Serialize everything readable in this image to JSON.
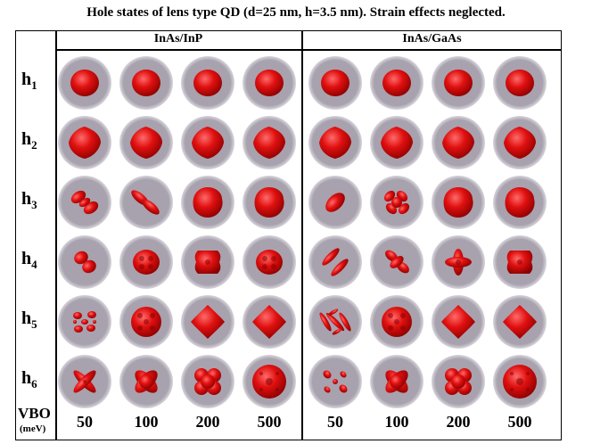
{
  "figure": {
    "title": "Hole states of lens type QD (d=25 nm, h=3.5 nm). Strain effects neglected.",
    "groups": [
      "InAs/InP",
      "InAs/GaAs"
    ],
    "row_labels": [
      {
        "main": "h",
        "sub": "1"
      },
      {
        "main": "h",
        "sub": "2"
      },
      {
        "main": "h",
        "sub": "3"
      },
      {
        "main": "h",
        "sub": "4"
      },
      {
        "main": "h",
        "sub": "5"
      },
      {
        "main": "h",
        "sub": "6"
      }
    ],
    "vbo_label": "VBO",
    "vbo_unit": "(meV)",
    "vbo_values": [
      "50",
      "100",
      "200",
      "500",
      "50",
      "100",
      "200",
      "500"
    ]
  },
  "colors": {
    "disc": "#a8a2ae",
    "disc_edge": "#d9d6dc",
    "density": "#e01010",
    "density_dark": "#8a0000"
  },
  "shapes": [
    [
      "sphere",
      "sphere",
      "sphere",
      "sphere",
      "sphere",
      "sphere",
      "sphere",
      "sphere"
    ],
    [
      "diamond",
      "diamond",
      "diamond",
      "diamond",
      "diamond",
      "diamond",
      "diamond",
      "diamond"
    ],
    [
      "dumbbell",
      "split-pair",
      "blob",
      "blob",
      "pill",
      "cross-lobes",
      "blob",
      "blob"
    ],
    [
      "peanut",
      "ring4",
      "square4",
      "ring4",
      "twin-bars",
      "twist",
      "plus",
      "square4"
    ],
    [
      "scatter",
      "lattice",
      "rhombus",
      "rhombus",
      "arcs",
      "lattice",
      "rhombus",
      "rhombus"
    ],
    [
      "x-cross",
      "x-blob",
      "clover",
      "ring-big",
      "quad-dots",
      "x-blob",
      "clover",
      "ring-big"
    ]
  ]
}
